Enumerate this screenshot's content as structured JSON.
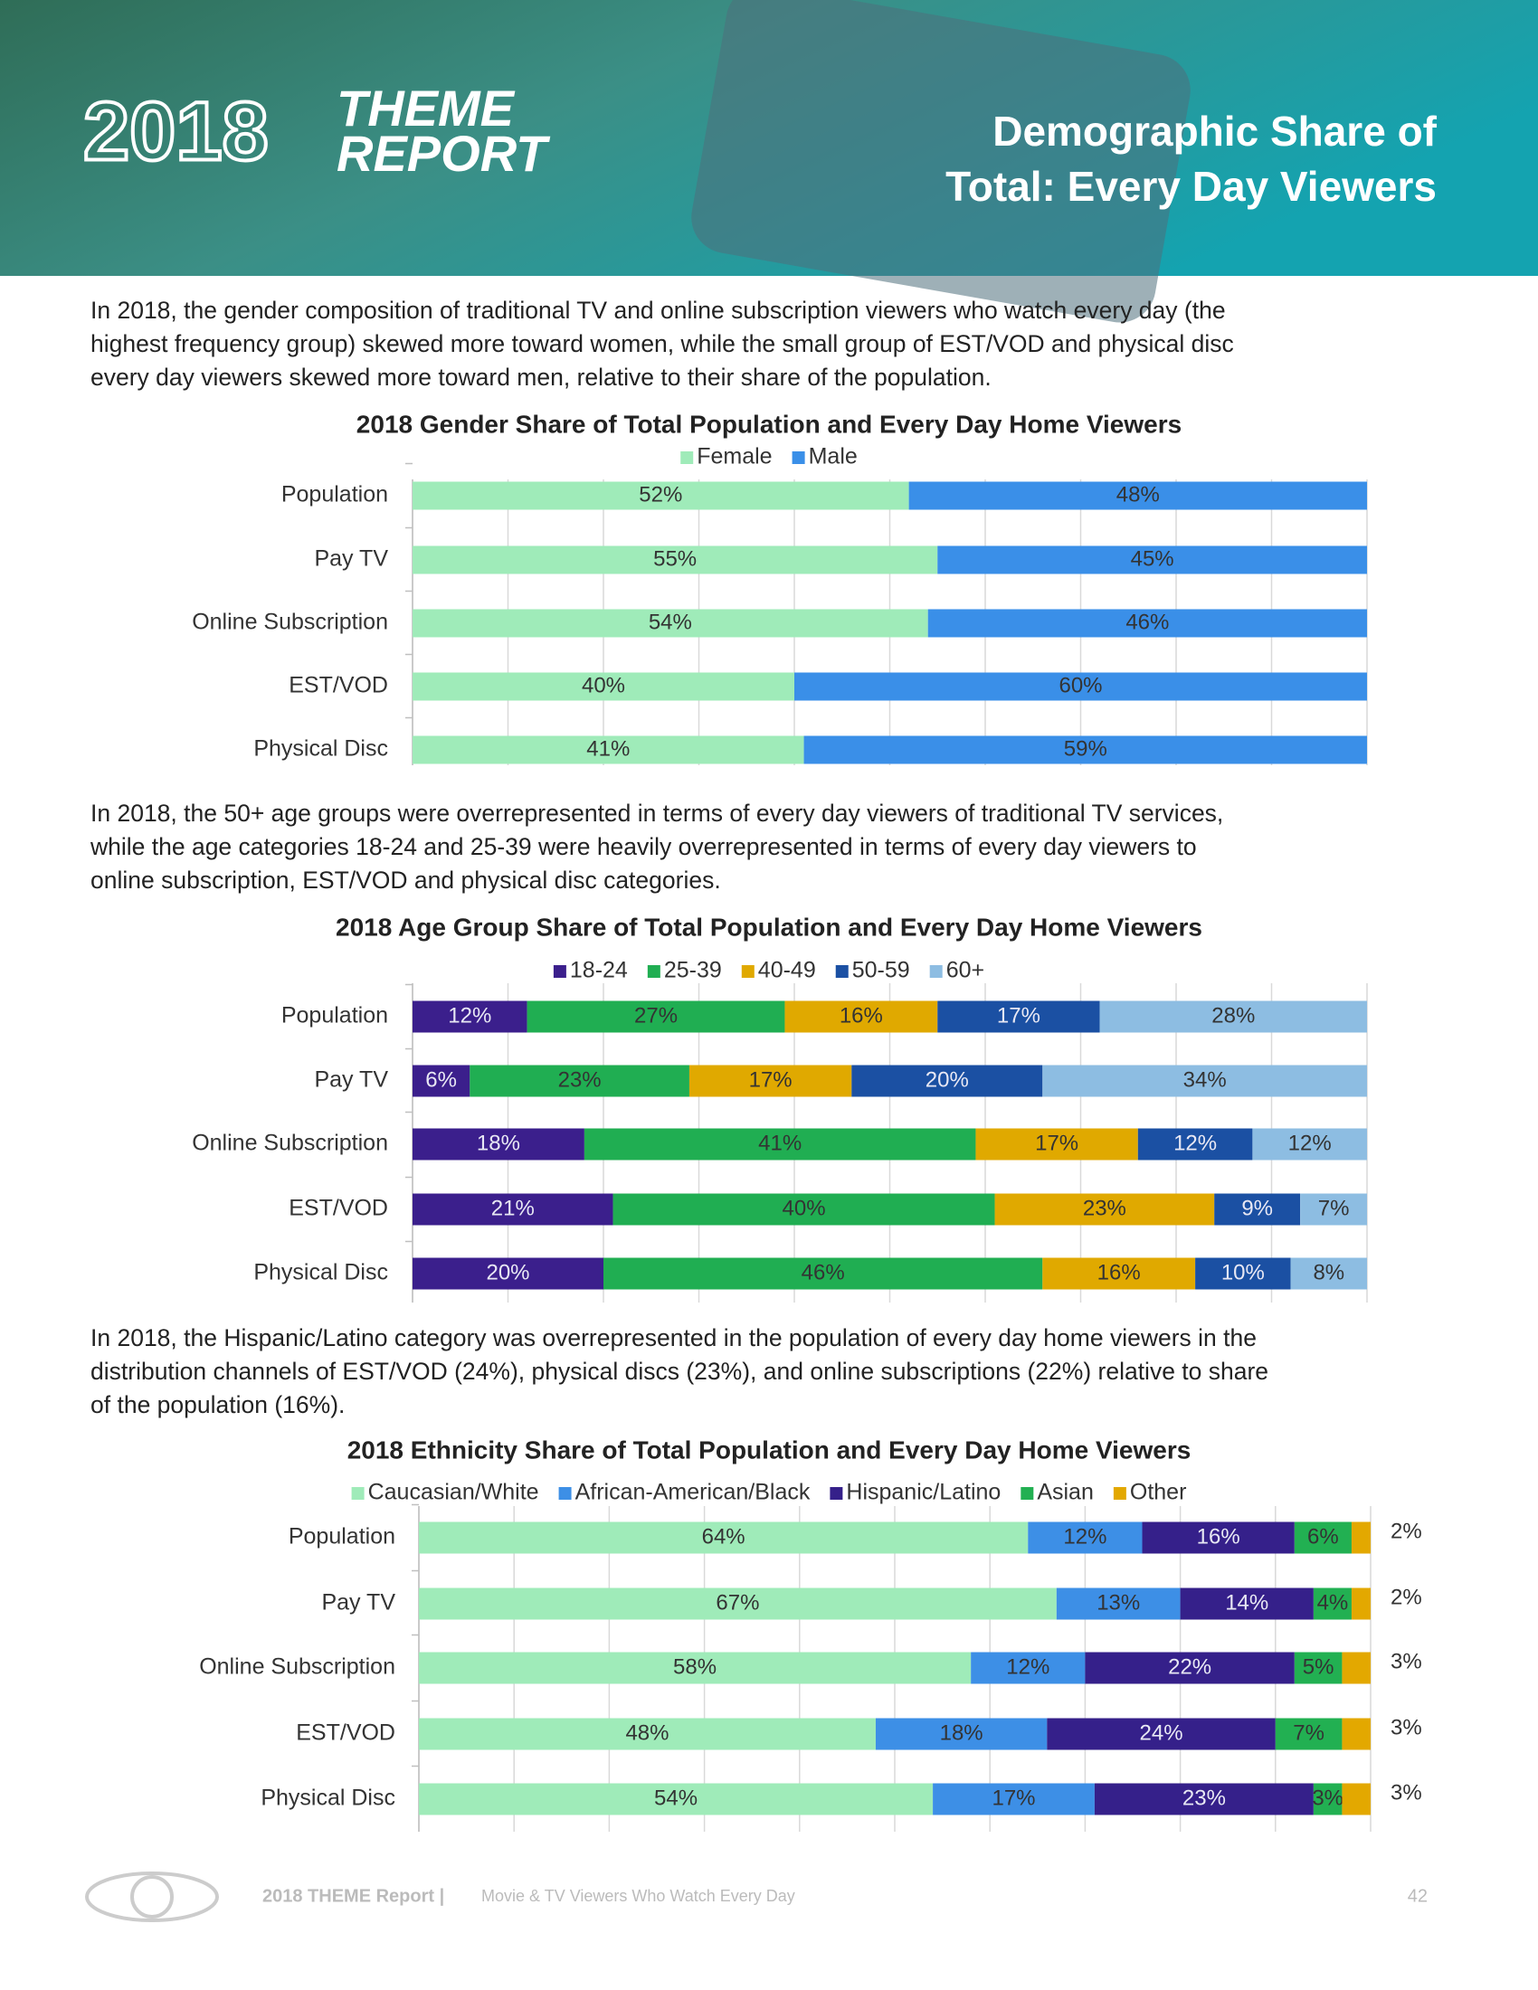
{
  "header": {
    "logo_year": "2018",
    "logo_words": [
      "THEME",
      "REPORT"
    ],
    "title_lines": [
      "Demographic Share of",
      "Total: Every Day Viewers"
    ]
  },
  "paragraphs": [
    [
      "In 2018, the gender composition of traditional TV and online subscription viewers who watch every day (the",
      "highest frequency group) skewed more toward women, while the small group of EST/VOD and physical disc",
      "every day viewers skewed more toward men, relative to their share of the population."
    ],
    [
      "In 2018, the 50+ age groups were overrepresented in terms of every day viewers of traditional TV services,",
      "while the age categories 18-24 and 25-39 were heavily overrepresented in terms of every day viewers to",
      "online subscription, EST/VOD and physical disc categories."
    ],
    [
      "In 2018, the Hispanic/Latino category was overrepresented in the population of every day home viewers in the",
      "distribution channels of EST/VOD (24%), physical discs (23%), and online subscriptions (22%) relative to share",
      "of the population (16%)."
    ]
  ],
  "chart_data": [
    {
      "type": "stacked_barh",
      "title": "2018 Gender Share of Total Population and Every Day Home Viewers",
      "categories": [
        "Population",
        "Pay TV",
        "Online Subscription",
        "EST/VOD",
        "Physical Disc"
      ],
      "series": [
        {
          "name": "Female",
          "color": "#9febb9",
          "values": [
            52,
            55,
            54,
            40,
            41
          ],
          "value_labels": [
            "52%",
            "55%",
            "54%",
            "40%",
            "41%"
          ]
        },
        {
          "name": "Male",
          "color": "#3a8fe8",
          "values": [
            48,
            45,
            46,
            60,
            59
          ],
          "value_labels": [
            "48%",
            "45%",
            "46%",
            "60%",
            "59%"
          ]
        }
      ],
      "xlim": [
        0,
        100
      ],
      "xticks": [
        0,
        10,
        20,
        30,
        40,
        50,
        60,
        70,
        80,
        90,
        100
      ],
      "grid": true,
      "legend": "top"
    },
    {
      "type": "stacked_barh",
      "title": "2018 Age Group Share of Total Population and Every Day Home Viewers",
      "categories": [
        "Population",
        "Pay TV",
        "Online Subscription",
        "EST/VOD",
        "Physical Disc"
      ],
      "series": [
        {
          "name": "18-24",
          "color": "#3b1f8c",
          "values": [
            12,
            6,
            18,
            21,
            20
          ],
          "value_labels": [
            "12%",
            "6%",
            "18%",
            "21%",
            "20%"
          ]
        },
        {
          "name": "25-39",
          "color": "#20ae52",
          "values": [
            27,
            23,
            41,
            40,
            46
          ],
          "value_labels": [
            "27%",
            "23%",
            "41%",
            "40%",
            "46%"
          ]
        },
        {
          "name": "40-49",
          "color": "#e0a900",
          "values": [
            16,
            17,
            17,
            23,
            16
          ],
          "value_labels": [
            "16%",
            "17%",
            "17%",
            "23%",
            "16%"
          ]
        },
        {
          "name": "50-59",
          "color": "#1b50a3",
          "values": [
            17,
            20,
            12,
            9,
            10
          ],
          "value_labels": [
            "17%",
            "20%",
            "12%",
            "9%",
            "10%"
          ]
        },
        {
          "name": "60+",
          "color": "#8dbde2",
          "values": [
            28,
            34,
            12,
            7,
            8
          ],
          "value_labels": [
            "28%",
            "34%",
            "12%",
            "7%",
            "8%"
          ]
        }
      ],
      "xlim": [
        0,
        100
      ],
      "xticks": [
        0,
        10,
        20,
        30,
        40,
        50,
        60,
        70,
        80,
        90,
        100
      ],
      "grid": true,
      "legend": "top"
    },
    {
      "type": "stacked_barh",
      "title": "2018 Ethnicity Share of Total Population and Every Day Home Viewers",
      "categories": [
        "Population",
        "Pay TV",
        "Online Subscription",
        "EST/VOD",
        "Physical Disc"
      ],
      "series": [
        {
          "name": "Caucasian/White",
          "color": "#9febb9",
          "values": [
            64,
            67,
            58,
            48,
            54
          ],
          "value_labels": [
            "64%",
            "67%",
            "58%",
            "48%",
            "54%"
          ]
        },
        {
          "name": "African-American/Black",
          "color": "#3d8fe6",
          "values": [
            12,
            13,
            12,
            18,
            17
          ],
          "value_labels": [
            "12%",
            "13%",
            "12%",
            "18%",
            "17%"
          ]
        },
        {
          "name": "Hispanic/Latino",
          "color": "#35208a",
          "values": [
            16,
            14,
            22,
            24,
            23
          ],
          "value_labels": [
            "16%",
            "14%",
            "22%",
            "24%",
            "23%"
          ]
        },
        {
          "name": "Asian",
          "color": "#22b052",
          "values": [
            6,
            4,
            5,
            7,
            3
          ],
          "value_labels": [
            "6%",
            "4%",
            "5%",
            "7%",
            "3%"
          ]
        },
        {
          "name": "Other",
          "color": "#e3a800",
          "values": [
            2,
            2,
            3,
            3,
            3
          ],
          "value_labels": [
            "2%",
            "2%",
            "3%",
            "3%",
            "3%"
          ],
          "label_position": "outside"
        }
      ],
      "xlim": [
        0,
        100
      ],
      "xticks": [
        0,
        10,
        20,
        30,
        40,
        50,
        60,
        70,
        80,
        90,
        100
      ],
      "grid": true,
      "legend": "top"
    }
  ],
  "footer": {
    "label": "2018 THEME Report |",
    "text": "Movie & TV Viewers Who Watch Every Day",
    "page": "42"
  }
}
